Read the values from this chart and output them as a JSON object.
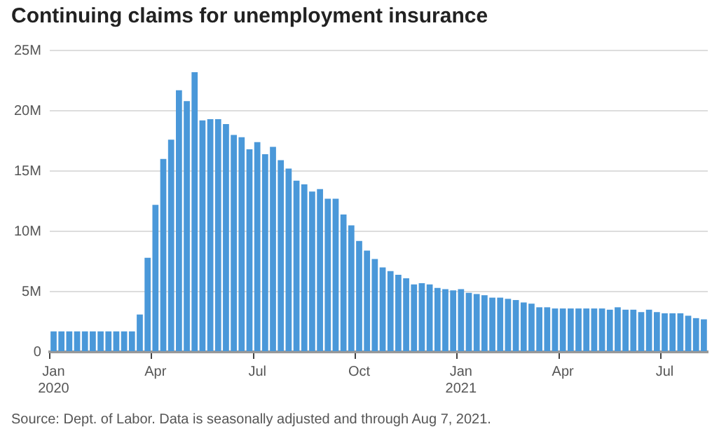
{
  "chart_data": {
    "type": "bar",
    "title": "Continuing claims for unemployment insurance",
    "categories": [
      "Jan 2020",
      null,
      null,
      null,
      null,
      null,
      null,
      null,
      null,
      null,
      null,
      null,
      null,
      "Apr",
      null,
      null,
      null,
      null,
      null,
      null,
      null,
      null,
      null,
      null,
      null,
      null,
      "Jul",
      null,
      null,
      null,
      null,
      null,
      null,
      null,
      null,
      null,
      null,
      null,
      null,
      "Oct",
      null,
      null,
      null,
      null,
      null,
      null,
      null,
      null,
      null,
      null,
      null,
      null,
      "Jan 2021",
      null,
      null,
      null,
      null,
      null,
      null,
      null,
      null,
      null,
      null,
      null,
      null,
      "Apr",
      null,
      null,
      null,
      null,
      null,
      null,
      null,
      null,
      null,
      null,
      null,
      null,
      "Jul",
      null,
      null,
      null,
      null,
      null
    ],
    "values": [
      1.7,
      1.7,
      1.7,
      1.7,
      1.7,
      1.7,
      1.7,
      1.7,
      1.7,
      1.7,
      1.7,
      3.1,
      7.8,
      12.2,
      16.0,
      17.6,
      21.7,
      20.8,
      23.2,
      19.2,
      19.3,
      19.3,
      18.9,
      18.0,
      17.8,
      16.8,
      17.4,
      16.4,
      17.0,
      15.9,
      15.2,
      14.2,
      13.9,
      13.3,
      13.5,
      12.7,
      12.7,
      11.4,
      10.5,
      9.2,
      8.4,
      7.7,
      7.0,
      6.7,
      6.4,
      6.1,
      5.6,
      5.7,
      5.6,
      5.3,
      5.2,
      5.1,
      5.2,
      4.9,
      4.8,
      4.7,
      4.5,
      4.5,
      4.4,
      4.3,
      4.1,
      4.0,
      3.7,
      3.7,
      3.6,
      3.6,
      3.6,
      3.6,
      3.6,
      3.6,
      3.6,
      3.5,
      3.7,
      3.5,
      3.5,
      3.3,
      3.5,
      3.3,
      3.2,
      3.2,
      3.2,
      3.0,
      2.8,
      2.7
    ],
    "color": "#4a98d9",
    "ylim": [
      0,
      25
    ],
    "yticks": [
      0,
      {
        "value": 5,
        "label": "5M"
      },
      {
        "value": 10,
        "label": "10M"
      },
      {
        "value": 15,
        "label": "15M"
      },
      {
        "value": 20,
        "label": "20M"
      },
      {
        "value": 25,
        "label": "25M"
      }
    ],
    "grid": "y",
    "annotations": [
      "Source: Dept. of Labor. Data is seasonally adjusted and through Aug 7, 2021."
    ]
  }
}
